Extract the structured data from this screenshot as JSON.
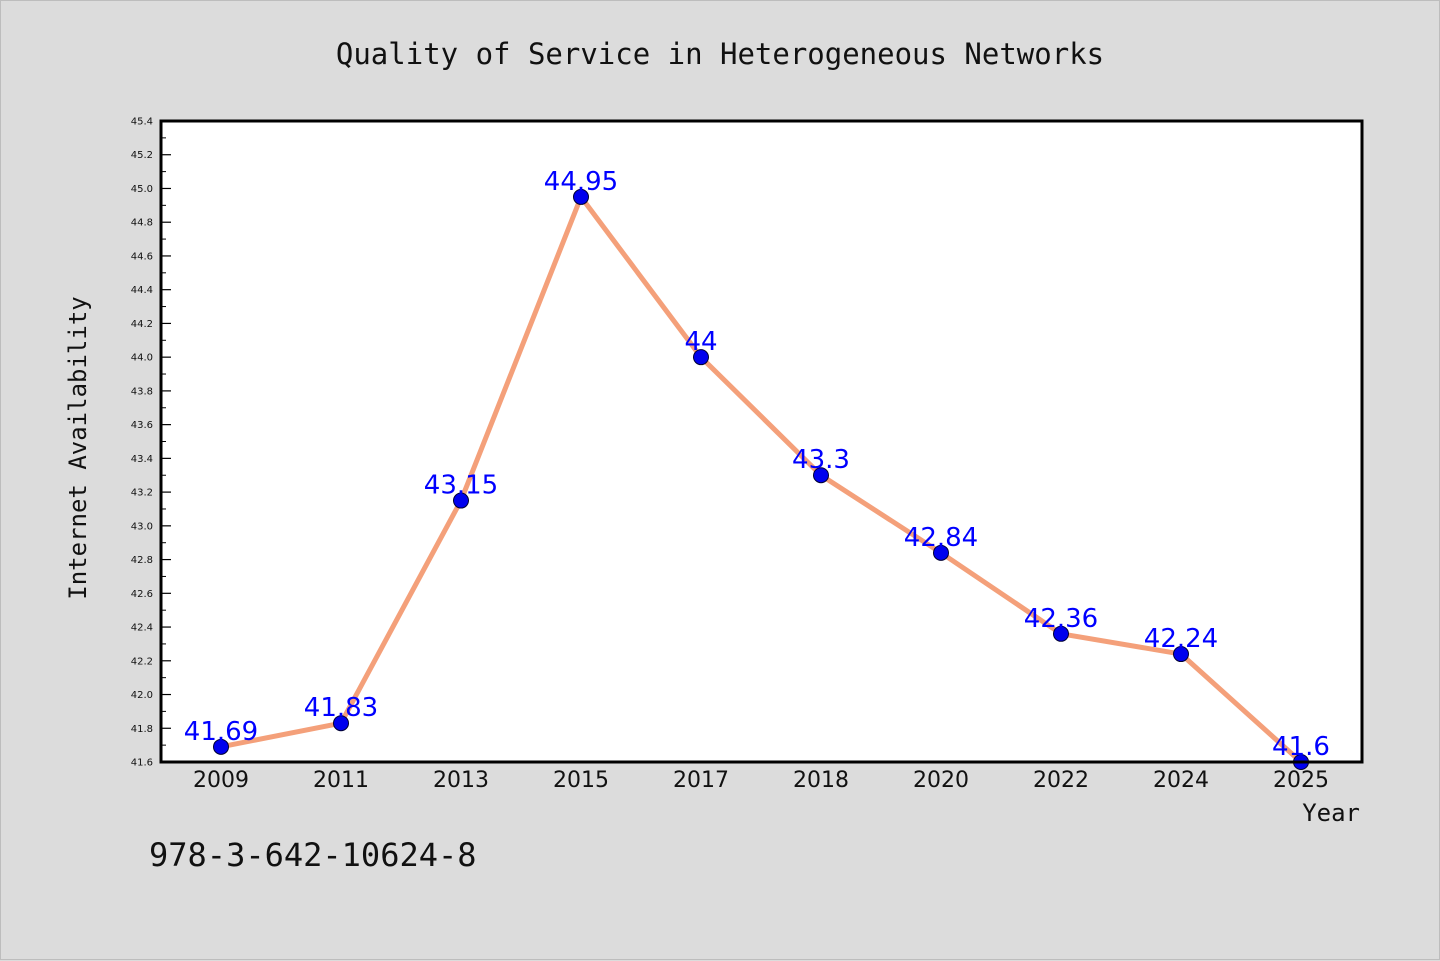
{
  "chart_data": {
    "type": "line",
    "title": "Quality of Service in Heterogeneous Networks",
    "xlabel": "Year",
    "ylabel": "Internet Availability",
    "categories": [
      "2009",
      "2011",
      "2013",
      "2015",
      "2017",
      "2018",
      "2020",
      "2022",
      "2024",
      "2025"
    ],
    "series": [
      {
        "values": [
          41.69,
          41.83,
          43.15,
          44.95,
          44.0,
          43.3,
          42.84,
          42.36,
          42.24,
          41.6
        ]
      }
    ],
    "data_labels": [
      "41.69",
      "41.83",
      "43.15",
      "44.95",
      "44",
      "43.3",
      "42.84",
      "42.36",
      "42.24",
      "41.6"
    ],
    "ylim": [
      41.6,
      45.4
    ],
    "yticks": [
      "41.6",
      "41.8",
      "42.0",
      "42.2",
      "42.4",
      "42.6",
      "42.8",
      "43.0",
      "43.2",
      "43.4",
      "43.6",
      "43.8",
      "44.0",
      "44.2",
      "44.4",
      "44.6",
      "44.8",
      "45.0",
      "45.2",
      "45.4"
    ],
    "grid": false,
    "colors": {
      "line": "#f4a07a",
      "marker": "#0000ee",
      "label": "#0000ff",
      "plot_background": "#ffffff",
      "figure_background": "#dcdcdc"
    }
  },
  "footer": {
    "text": "978-3-642-10624-8"
  }
}
